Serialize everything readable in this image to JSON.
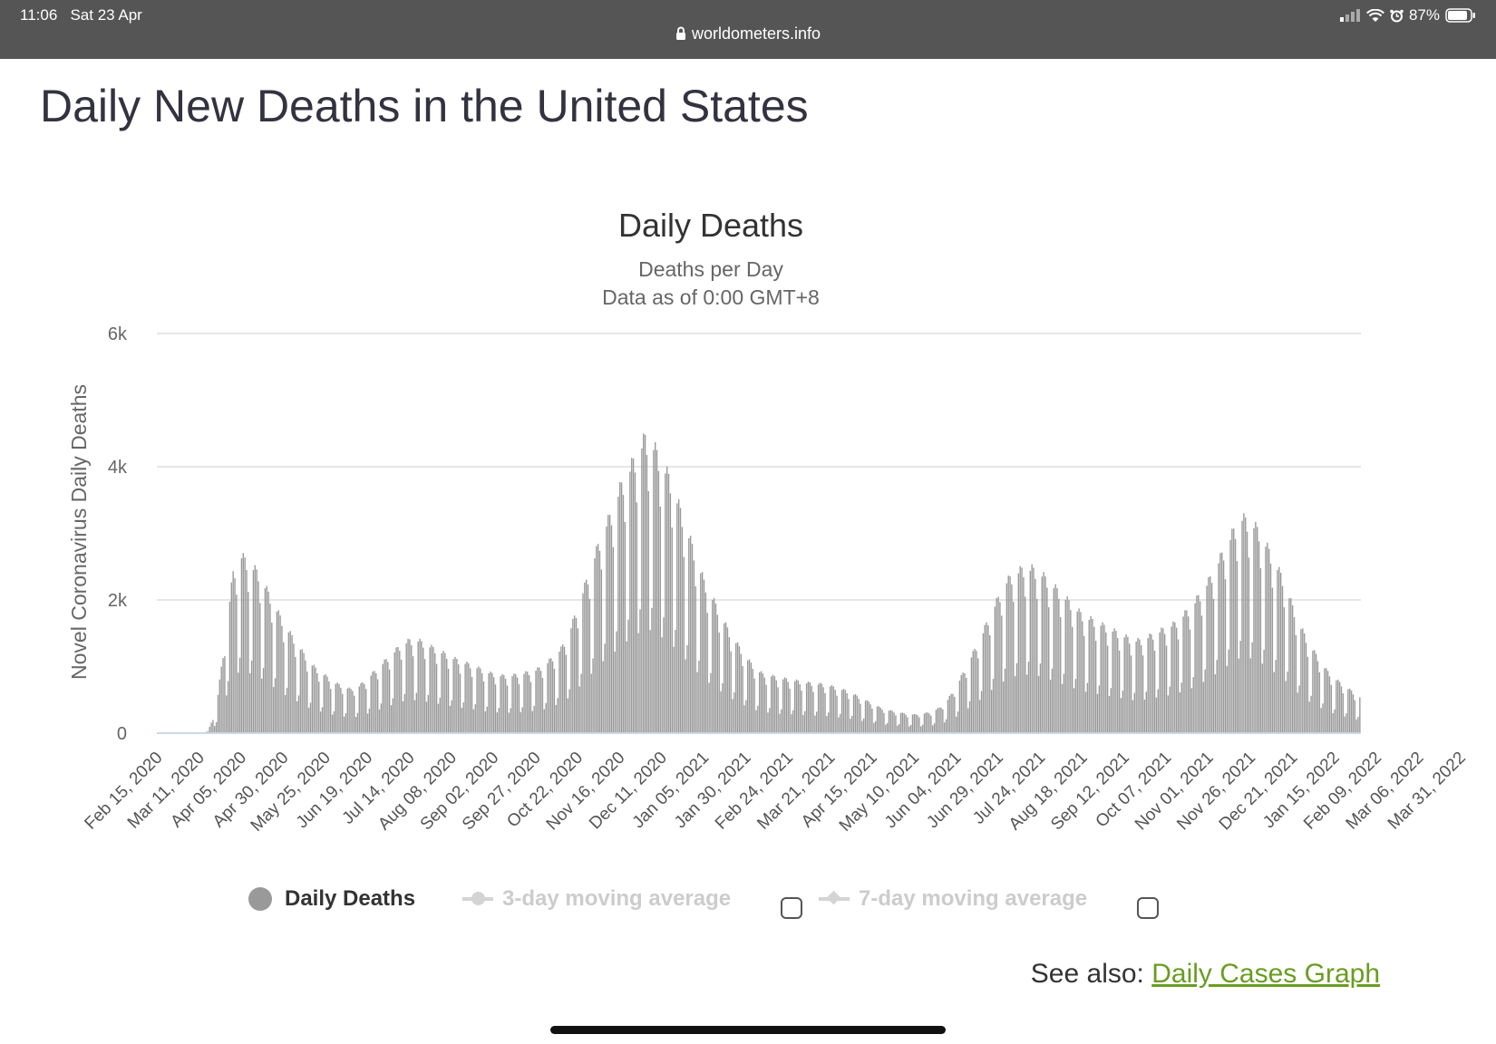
{
  "status_bar": {
    "time": "11:06",
    "date": "Sat 23 Apr",
    "url": "worldometers.info",
    "battery": "87%"
  },
  "page": {
    "title": "Daily New Deaths in the United States"
  },
  "chart_data": {
    "type": "bar",
    "title": "Daily Deaths",
    "subtitle_lines": [
      "Deaths per Day",
      "Data as of 0:00 GMT+8"
    ],
    "ylabel": "Novel Coronavirus Daily Deaths",
    "ylim": [
      0,
      6000
    ],
    "y_ticks": [
      0,
      2000,
      4000,
      6000
    ],
    "y_tick_labels": [
      "0",
      "2k",
      "4k",
      "6k"
    ],
    "grid": true,
    "bar_color": "#999999",
    "x_tick_labels": [
      "Feb 15, 2020",
      "Mar 11, 2020",
      "Apr 05, 2020",
      "Apr 30, 2020",
      "May 25, 2020",
      "Jun 19, 2020",
      "Jul 14, 2020",
      "Aug 08, 2020",
      "Sep 02, 2020",
      "Sep 27, 2020",
      "Oct 22, 2020",
      "Nov 16, 2020",
      "Dec 11, 2020",
      "Jan 05, 2021",
      "Jan 30, 2021",
      "Feb 24, 2021",
      "Mar 21, 2021",
      "Apr 15, 2021",
      "May 10, 2021",
      "Jun 04, 2021",
      "Jun 29, 2021",
      "Jul 24, 2021",
      "Aug 18, 2021",
      "Sep 12, 2021",
      "Oct 07, 2021",
      "Nov 01, 2021",
      "Nov 26, 2021",
      "Dec 21, 2021",
      "Jan 15, 2022",
      "Feb 09, 2022",
      "Mar 06, 2022",
      "Mar 31, 2022"
    ],
    "tick_interval_days": 25,
    "series": [
      {
        "name": "Daily Deaths",
        "description": "Approximate 7-day-average daily deaths read from the chart, one value every 5 days from Feb 15, 2020 to Apr 20, 2022; daily values oscillate above and below with a weekly reporting cycle",
        "interval_days": 5,
        "values": [
          0,
          0,
          0,
          0,
          1,
          3,
          20,
          300,
          1100,
          1900,
          2100,
          2000,
          1900,
          1700,
          1500,
          1300,
          1150,
          1000,
          850,
          750,
          680,
          600,
          560,
          520,
          560,
          650,
          750,
          850,
          950,
          1050,
          1100,
          1100,
          1050,
          1000,
          950,
          900,
          850,
          820,
          780,
          730,
          700,
          680,
          680,
          700,
          720,
          750,
          800,
          900,
          1000,
          1200,
          1500,
          1800,
          2100,
          2400,
          2600,
          2900,
          3100,
          3300,
          3500,
          3400,
          3200,
          3000,
          2700,
          2400,
          2100,
          1800,
          1600,
          1400,
          1200,
          1050,
          900,
          780,
          700,
          680,
          650,
          640,
          620,
          600,
          590,
          580,
          560,
          530,
          500,
          450,
          400,
          350,
          300,
          270,
          250,
          230,
          220,
          230,
          250,
          300,
          400,
          550,
          750,
          950,
          1150,
          1400,
          1600,
          1800,
          1900,
          1950,
          1950,
          1900,
          1800,
          1700,
          1600,
          1500,
          1400,
          1350,
          1300,
          1250,
          1200,
          1150,
          1100,
          1100,
          1150,
          1200,
          1250,
          1300,
          1400,
          1500,
          1650,
          1800,
          2000,
          2200,
          2400,
          2550,
          2500,
          2400,
          2200,
          2000,
          1800,
          1500,
          1250,
          1050,
          900,
          750,
          650,
          570,
          500,
          430
        ]
      }
    ],
    "legend": [
      {
        "label": "Daily Deaths",
        "enabled": true
      },
      {
        "label": "3-day moving average",
        "enabled": false
      },
      {
        "label": "7-day moving average",
        "enabled": false
      }
    ]
  },
  "see_also": {
    "prefix": "See also:",
    "link_text": "Daily Cases Graph"
  }
}
